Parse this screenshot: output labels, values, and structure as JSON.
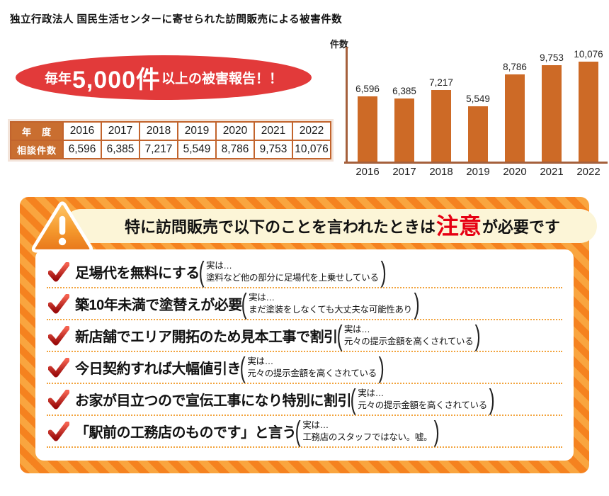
{
  "header": {
    "title": "独立行政法人 国民生活センターに寄せられた訪問販売による被害件数"
  },
  "badge": {
    "prefix": "毎年",
    "big": "5,000件",
    "suffix": "以上の被害報告！！"
  },
  "table": {
    "row1_label": "年　度",
    "row2_label": "相談件数",
    "years": [
      "2016",
      "2017",
      "2018",
      "2019",
      "2020",
      "2021",
      "2022"
    ],
    "counts": [
      "6,596",
      "6,385",
      "7,217",
      "5,549",
      "8,786",
      "9,753",
      "10,076"
    ]
  },
  "chart_data": {
    "type": "bar",
    "title": "国民生活センターに寄せられた訪問販売による被害件数",
    "ylabel": "件数",
    "xlabel": "",
    "categories": [
      "2016",
      "2017",
      "2018",
      "2019",
      "2020",
      "2021",
      "2022"
    ],
    "values": [
      6596,
      6385,
      7217,
      5549,
      8786,
      9753,
      10076
    ],
    "value_labels": [
      "6,596",
      "6,385",
      "7,217",
      "5,549",
      "8,786",
      "9,753",
      "10,076"
    ],
    "ylim": [
      0,
      10500
    ],
    "grid": false,
    "legend": false
  },
  "warning": {
    "heading": {
      "pre": "特に訪問販売で以下のことを言われたときは",
      "em": "注意",
      "post": "が必要です"
    },
    "items": [
      {
        "title": "足場代を無料にする",
        "note1": "実は…",
        "note2": "塗料など他の部分に足場代を上乗せしている"
      },
      {
        "title": "築10年未満で塗替えが必要",
        "note1": "実は…",
        "note2": "まだ塗装をしなくても大丈夫な可能性あり"
      },
      {
        "title": "新店舗でエリア開拓のため見本工事で割引",
        "note1": "実は…",
        "note2": "元々の提示金額を高くされている"
      },
      {
        "title": "今日契約すれば大幅値引き",
        "note1": "実は…",
        "note2": "元々の提示金額を高くされている"
      },
      {
        "title": "お家が目立つので宣伝工事になり特別に割引",
        "note1": "実は…",
        "note2": "元々の提示金額を高くされている"
      },
      {
        "title": "「駅前の工務店のものです」と言う",
        "note1": "実は…",
        "note2": "工務店のスタッフではない。嘘。"
      }
    ]
  },
  "colors": {
    "red_badge": "#e23a3a",
    "table_header": "#c96e30",
    "table_border": "#c2642d",
    "bar": "#cd6a26",
    "axis": "#a5603c",
    "stripe_dark": "#f5821f",
    "stripe_light": "#f9a53f",
    "banner_bg": "#fcf5d7",
    "emphasis_red": "#e60012",
    "dotted_separator": "#f2a33c",
    "check_red": "#cc1a1a"
  }
}
